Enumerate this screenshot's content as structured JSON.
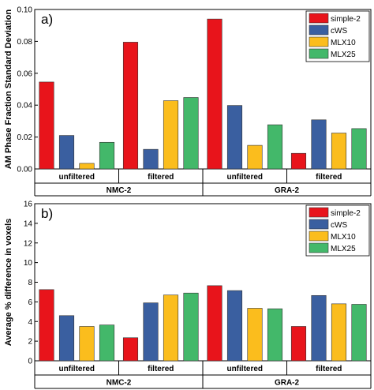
{
  "chart_data": [
    {
      "type": "bar",
      "panel_label": "a)",
      "ylabel": "AM Phase Fraction Standard Deviation",
      "ylim": [
        0,
        0.1
      ],
      "yticks": [
        "0.00",
        "0.02",
        "0.04",
        "0.06",
        "0.08",
        "0.10"
      ],
      "categories": [
        "unfiltered",
        "filtered",
        "unfiltered",
        "filtered"
      ],
      "groups": [
        "NMC-2",
        "GRA-2"
      ],
      "legend_position": "top-right",
      "series": [
        {
          "name": "simple-2",
          "color": "#e8141b",
          "values": [
            0.0545,
            0.0795,
            0.094,
            0.0098
          ]
        },
        {
          "name": "cWS",
          "color": "#3a5fa0",
          "values": [
            0.021,
            0.0123,
            0.0398,
            0.0308
          ]
        },
        {
          "name": "MLX10",
          "color": "#fbbd1d",
          "values": [
            0.0035,
            0.0428,
            0.0148,
            0.0225
          ]
        },
        {
          "name": "MLX25",
          "color": "#43b86a",
          "values": [
            0.0167,
            0.0448,
            0.0277,
            0.0253
          ]
        }
      ]
    },
    {
      "type": "bar",
      "panel_label": "b)",
      "ylabel": "Average % difference in voxels",
      "ylim": [
        0,
        16
      ],
      "yticks": [
        "0",
        "2",
        "4",
        "6",
        "8",
        "10",
        "12",
        "14",
        "16"
      ],
      "categories": [
        "unfiltered",
        "filtered",
        "unfiltered",
        "filtered"
      ],
      "groups": [
        "NMC-2",
        "GRA-2"
      ],
      "legend_position": "top-right",
      "series": [
        {
          "name": "simple-2",
          "color": "#e8141b",
          "values": [
            7.25,
            2.35,
            7.65,
            3.5
          ]
        },
        {
          "name": "cWS",
          "color": "#3a5fa0",
          "values": [
            4.6,
            5.9,
            7.15,
            6.65
          ]
        },
        {
          "name": "MLX10",
          "color": "#fbbd1d",
          "values": [
            3.5,
            6.7,
            5.35,
            5.8
          ]
        },
        {
          "name": "MLX25",
          "color": "#43b86a",
          "values": [
            3.65,
            6.9,
            5.3,
            5.75
          ]
        }
      ]
    }
  ]
}
